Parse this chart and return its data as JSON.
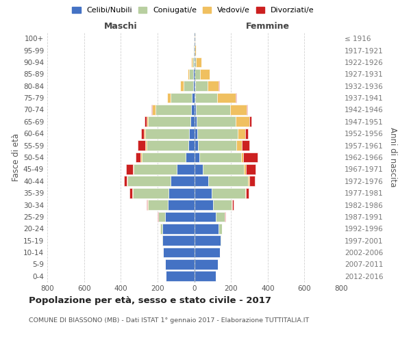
{
  "age_groups": [
    "0-4",
    "5-9",
    "10-14",
    "15-19",
    "20-24",
    "25-29",
    "30-34",
    "35-39",
    "40-44",
    "45-49",
    "50-54",
    "55-59",
    "60-64",
    "65-69",
    "70-74",
    "75-79",
    "80-84",
    "85-89",
    "90-94",
    "95-99",
    "100+"
  ],
  "birth_years": [
    "2012-2016",
    "2007-2011",
    "2002-2006",
    "1997-2001",
    "1992-1996",
    "1987-1991",
    "1982-1986",
    "1977-1981",
    "1972-1976",
    "1967-1971",
    "1962-1966",
    "1957-1961",
    "1952-1956",
    "1947-1951",
    "1942-1946",
    "1937-1941",
    "1932-1936",
    "1927-1931",
    "1922-1926",
    "1917-1921",
    "≤ 1916"
  ],
  "male_celibinubili": [
    155,
    158,
    168,
    172,
    172,
    158,
    145,
    140,
    128,
    95,
    48,
    32,
    28,
    22,
    18,
    12,
    5,
    5,
    3,
    2,
    2
  ],
  "male_coniugati": [
    0,
    1,
    2,
    5,
    14,
    38,
    108,
    195,
    235,
    235,
    238,
    228,
    238,
    228,
    192,
    118,
    52,
    22,
    8,
    2,
    1
  ],
  "male_vedovi": [
    0,
    0,
    0,
    0,
    1,
    1,
    2,
    3,
    4,
    4,
    5,
    5,
    8,
    10,
    18,
    18,
    18,
    10,
    4,
    1,
    0
  ],
  "male_divorziati": [
    0,
    0,
    0,
    0,
    1,
    2,
    4,
    14,
    14,
    38,
    28,
    42,
    14,
    10,
    4,
    0,
    0,
    0,
    0,
    0,
    0
  ],
  "female_celibinubili": [
    118,
    128,
    138,
    142,
    132,
    118,
    102,
    95,
    75,
    48,
    28,
    22,
    18,
    12,
    8,
    4,
    4,
    3,
    2,
    1,
    1
  ],
  "female_coniugati": [
    0,
    1,
    2,
    6,
    18,
    48,
    102,
    182,
    218,
    222,
    228,
    208,
    218,
    212,
    188,
    122,
    68,
    28,
    8,
    2,
    1
  ],
  "female_vedovi": [
    0,
    0,
    0,
    0,
    1,
    1,
    2,
    4,
    8,
    12,
    12,
    28,
    42,
    78,
    88,
    98,
    62,
    54,
    28,
    5,
    2
  ],
  "female_divorziati": [
    0,
    0,
    0,
    0,
    1,
    2,
    8,
    14,
    28,
    52,
    78,
    42,
    14,
    8,
    4,
    4,
    2,
    0,
    0,
    0,
    0
  ],
  "color_celibinubili": "#4472c4",
  "color_coniugati": "#b8cfa0",
  "color_vedovi": "#f0c060",
  "color_divorziati": "#cc2020",
  "xlim": 800,
  "title": "Popolazione per età, sesso e stato civile - 2017",
  "subtitle": "COMUNE DI BIASSONO (MB) - Dati ISTAT 1° gennaio 2017 - Elaborazione TUTTITALIA.IT",
  "ylabel_left": "Fasce di età",
  "ylabel_right": "Anni di nascita",
  "label_maschi": "Maschi",
  "label_femmine": "Femmine",
  "legend_labels": [
    "Celibi/Nubili",
    "Coniugati/e",
    "Vedovi/e",
    "Divorziati/e"
  ],
  "background_color": "#ffffff",
  "grid_color": "#cccccc"
}
